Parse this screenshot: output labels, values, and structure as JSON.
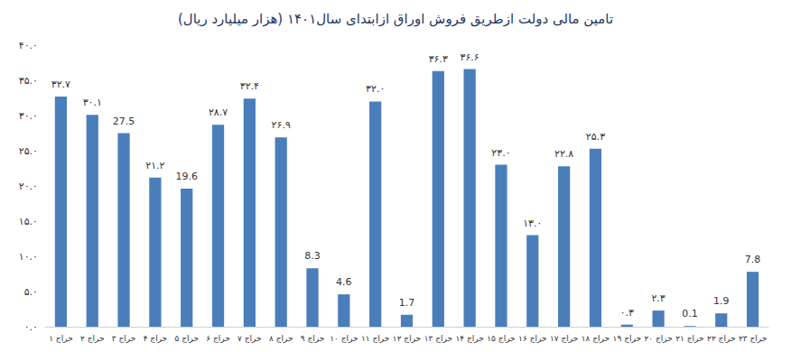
{
  "chart_data": {
    "type": "bar",
    "title": "تامین مالی دولت ازطریق فروش اوراق ازابتدای سال۱۴۰۱ (هزار میلیارد ریال)",
    "categories": [
      "حراج ۱",
      "حراج ۲",
      "حراج ۳",
      "حراج ۴",
      "حراج ۵",
      "حراج ۶",
      "حراج ۷",
      "حراج ۸",
      "حراج ۹",
      "حراج ۱۰",
      "حراج ۱۱",
      "حراج ۱۲",
      "حراج ۱۳",
      "حراج ۱۴",
      "حراج ۱۵",
      "حراج ۱۶",
      "حراج ۱۷",
      "حراج ۱۸",
      "حراج ۱۹",
      "حراج ۲۰",
      "حراج ۲۱",
      "حراج ۲۲",
      "حراج ۲۳"
    ],
    "values": [
      32.7,
      30.1,
      27.5,
      21.2,
      19.6,
      28.7,
      32.4,
      26.9,
      8.3,
      4.6,
      32.0,
      1.7,
      36.3,
      36.6,
      23.0,
      13.0,
      22.8,
      25.3,
      0.3,
      2.3,
      0.1,
      1.9,
      7.8
    ],
    "value_labels": [
      "۳۲.۷",
      "۳۰.۱",
      "27.5",
      "۲۱.۲",
      "19.6",
      "۲۸.۷",
      "۳۲.۴",
      "۲۶.۹",
      "8.3",
      "4.6",
      "۳۲.۰",
      "1.7",
      "۳۶.۳",
      "۳۶.۶",
      "۲۳.۰",
      "۱۳.۰",
      "۲۲.۸",
      "۲۵.۳",
      "۰.۳",
      "۲.۳",
      "0.1",
      "1.9",
      "7.8"
    ],
    "color": "#4a7ebb",
    "ylim": [
      0,
      40
    ],
    "yticks": [
      {
        "value": 0,
        "label": "۰.۰"
      },
      {
        "value": 5,
        "label": "۵.۰"
      },
      {
        "value": 10,
        "label": "۱۰.۰"
      },
      {
        "value": 15,
        "label": "۱۵.۰"
      },
      {
        "value": 20,
        "label": "۲۰.۰"
      },
      {
        "value": 25,
        "label": "۲۵.۰"
      },
      {
        "value": 30,
        "label": "۳۰.۰"
      },
      {
        "value": 35,
        "label": "۳۵.۰"
      },
      {
        "value": 40,
        "label": "۴۰.۰"
      }
    ],
    "grid": false,
    "data_labels": true
  }
}
